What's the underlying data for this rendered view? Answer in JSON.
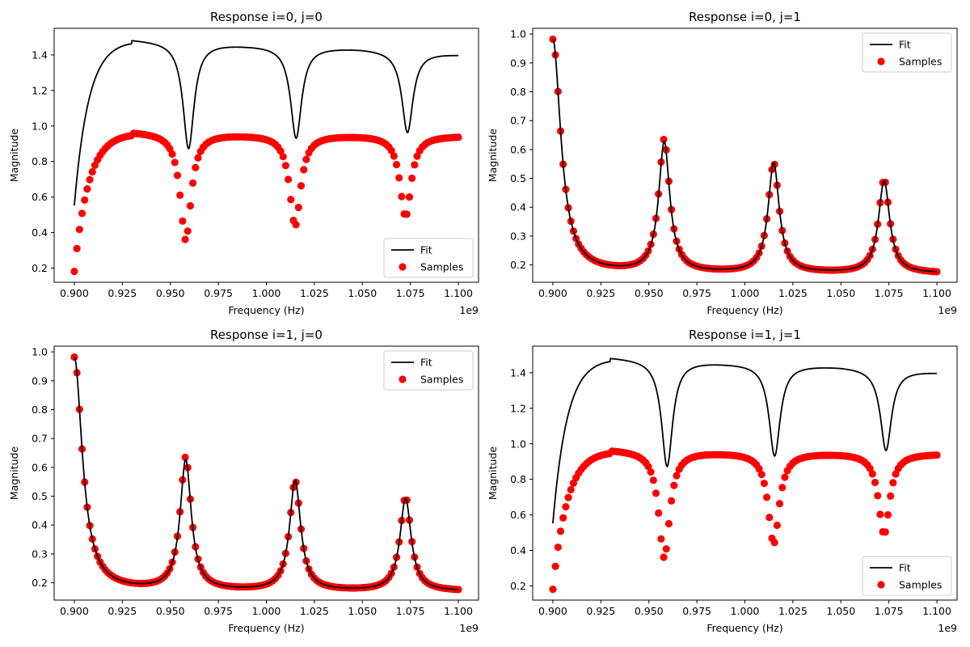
{
  "chart_data": [
    {
      "type": "line",
      "title": "Response i=0, j=0",
      "xlabel": "Frequency (Hz)",
      "ylabel": "Magnitude",
      "x_offset_label": "1e9",
      "xlim": [
        0.8895,
        1.1105
      ],
      "ylim": [
        0.12,
        1.55
      ],
      "xticks": [
        0.9,
        0.925,
        0.95,
        0.975,
        1.0,
        1.025,
        1.05,
        1.075,
        1.1
      ],
      "xtick_labels": [
        "0.900",
        "0.925",
        "0.950",
        "0.975",
        "1.000",
        "1.025",
        "1.050",
        "1.075",
        "1.100"
      ],
      "yticks": [
        0.2,
        0.4,
        0.6,
        0.8,
        1.0,
        1.2,
        1.4
      ],
      "ytick_labels": [
        "0.2",
        "0.4",
        "0.6",
        "0.8",
        "1.0",
        "1.2",
        "1.4"
      ],
      "legend": {
        "location": "lower right",
        "entries": [
          "Fit",
          "Samples"
        ]
      },
      "model": {
        "fit": {
          "form": "notch",
          "base": [
            0.55,
            1.49,
            1.46,
            1.44,
            1.405
          ],
          "dips": [
            [
              0.9595,
              0.875,
              0.0035
            ],
            [
              1.0155,
              0.935,
              0.0035
            ],
            [
              1.0735,
              0.965,
              0.0035
            ]
          ]
        },
        "samples": {
          "form": "notch",
          "base": [
            0.18,
            0.97,
            0.955,
            0.95,
            0.945
          ],
          "dips": [
            [
              0.958,
              0.36,
              0.0035
            ],
            [
              1.015,
              0.44,
              0.0035
            ],
            [
              1.0725,
              0.49,
              0.0035
            ]
          ],
          "count": 150
        }
      },
      "colors": {
        "fit": "#000000",
        "samples": "#ff0000"
      },
      "grid": false
    },
    {
      "type": "line",
      "title": "Response i=0, j=1",
      "xlabel": "Frequency (Hz)",
      "ylabel": "Magnitude",
      "x_offset_label": "1e9",
      "xlim": [
        0.8895,
        1.1105
      ],
      "ylim": [
        0.14,
        1.02
      ],
      "xticks": [
        0.9,
        0.925,
        0.95,
        0.975,
        1.0,
        1.025,
        1.05,
        1.075,
        1.1
      ],
      "xtick_labels": [
        "0.900",
        "0.925",
        "0.950",
        "0.975",
        "1.000",
        "1.025",
        "1.050",
        "1.075",
        "1.100"
      ],
      "yticks": [
        0.2,
        0.3,
        0.4,
        0.5,
        0.6,
        0.7,
        0.8,
        0.9,
        1.0
      ],
      "ytick_labels": [
        "0.2",
        "0.3",
        "0.4",
        "0.5",
        "0.6",
        "0.7",
        "0.8",
        "0.9",
        "1.0"
      ],
      "legend": {
        "location": "upper right",
        "entries": [
          "Fit",
          "Samples"
        ]
      },
      "model": {
        "fit": {
          "form": "peak",
          "base": 0.17,
          "edge": [
            0.98,
            0.005
          ],
          "peaks": [
            [
              0.958,
              0.62,
              0.0035
            ],
            [
              1.015,
              0.55,
              0.0035
            ],
            [
              1.0725,
              0.49,
              0.0035
            ]
          ]
        },
        "samples": {
          "form": "peak",
          "base": 0.17,
          "edge": [
            0.98,
            0.005
          ],
          "peaks": [
            [
              0.958,
              0.63,
              0.0035
            ],
            [
              1.015,
              0.55,
              0.0035
            ],
            [
              1.0725,
              0.495,
              0.0035
            ]
          ],
          "count": 150
        }
      },
      "colors": {
        "fit": "#000000",
        "samples": "#ff0000"
      },
      "grid": false
    },
    {
      "type": "line",
      "title": "Response i=1, j=0",
      "xlabel": "Frequency (Hz)",
      "ylabel": "Magnitude",
      "x_offset_label": "1e9",
      "xlim": [
        0.8895,
        1.1105
      ],
      "ylim": [
        0.14,
        1.02
      ],
      "xticks": [
        0.9,
        0.925,
        0.95,
        0.975,
        1.0,
        1.025,
        1.05,
        1.075,
        1.1
      ],
      "xtick_labels": [
        "0.900",
        "0.925",
        "0.950",
        "0.975",
        "1.000",
        "1.025",
        "1.050",
        "1.075",
        "1.100"
      ],
      "yticks": [
        0.2,
        0.3,
        0.4,
        0.5,
        0.6,
        0.7,
        0.8,
        0.9,
        1.0
      ],
      "ytick_labels": [
        "0.2",
        "0.3",
        "0.4",
        "0.5",
        "0.6",
        "0.7",
        "0.8",
        "0.9",
        "1.0"
      ],
      "legend": {
        "location": "upper right",
        "entries": [
          "Fit",
          "Samples"
        ]
      },
      "model": {
        "fit": {
          "form": "peak",
          "base": 0.17,
          "edge": [
            0.98,
            0.005
          ],
          "peaks": [
            [
              0.958,
              0.62,
              0.0035
            ],
            [
              1.015,
              0.55,
              0.0035
            ],
            [
              1.0725,
              0.49,
              0.0035
            ]
          ]
        },
        "samples": {
          "form": "peak",
          "base": 0.17,
          "edge": [
            0.98,
            0.005
          ],
          "peaks": [
            [
              0.958,
              0.63,
              0.0035
            ],
            [
              1.015,
              0.55,
              0.0035
            ],
            [
              1.0725,
              0.495,
              0.0035
            ]
          ],
          "count": 150
        }
      },
      "colors": {
        "fit": "#000000",
        "samples": "#ff0000"
      },
      "grid": false
    },
    {
      "type": "line",
      "title": "Response i=1, j=1",
      "xlabel": "Frequency (Hz)",
      "ylabel": "Magnitude",
      "x_offset_label": "1e9",
      "xlim": [
        0.8895,
        1.1105
      ],
      "ylim": [
        0.12,
        1.55
      ],
      "xticks": [
        0.9,
        0.925,
        0.95,
        0.975,
        1.0,
        1.025,
        1.05,
        1.075,
        1.1
      ],
      "xtick_labels": [
        "0.900",
        "0.925",
        "0.950",
        "0.975",
        "1.000",
        "1.025",
        "1.050",
        "1.075",
        "1.100"
      ],
      "yticks": [
        0.2,
        0.4,
        0.6,
        0.8,
        1.0,
        1.2,
        1.4
      ],
      "ytick_labels": [
        "0.2",
        "0.4",
        "0.6",
        "0.8",
        "1.0",
        "1.2",
        "1.4"
      ],
      "legend": {
        "location": "lower right",
        "entries": [
          "Fit",
          "Samples"
        ]
      },
      "model": {
        "fit": {
          "form": "notch",
          "base": [
            0.55,
            1.49,
            1.46,
            1.44,
            1.405
          ],
          "dips": [
            [
              0.9595,
              0.875,
              0.0035
            ],
            [
              1.0155,
              0.935,
              0.0035
            ],
            [
              1.0735,
              0.965,
              0.0035
            ]
          ]
        },
        "samples": {
          "form": "notch",
          "base": [
            0.18,
            0.97,
            0.955,
            0.95,
            0.945
          ],
          "dips": [
            [
              0.958,
              0.36,
              0.0035
            ],
            [
              1.015,
              0.44,
              0.0035
            ],
            [
              1.0725,
              0.49,
              0.0035
            ]
          ],
          "count": 150
        }
      },
      "colors": {
        "fit": "#000000",
        "samples": "#ff0000"
      },
      "grid": false
    }
  ]
}
